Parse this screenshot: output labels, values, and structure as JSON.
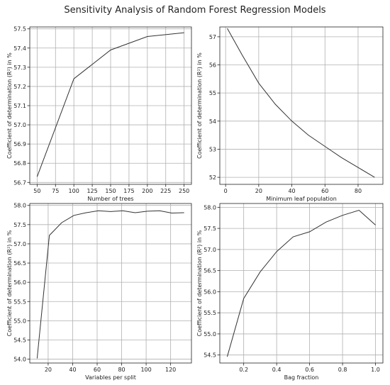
{
  "title": "Sensitivity Analysis of Random Forest Regression Models",
  "chart_data": [
    {
      "type": "line",
      "xlabel": "Number of trees",
      "ylabel": "Coefficient of determination (R²) in %",
      "x": [
        50,
        100,
        150,
        200,
        250
      ],
      "y": [
        56.73,
        57.24,
        57.39,
        57.46,
        57.48
      ],
      "xlim": [
        40,
        260
      ],
      "ylim": [
        56.69,
        57.51
      ],
      "xticks": [
        50,
        75,
        100,
        125,
        150,
        175,
        200,
        225,
        250
      ],
      "xtick_labels": [
        "50",
        "75",
        "100",
        "125",
        "150",
        "175",
        "200",
        "225",
        "250"
      ],
      "yticks": [
        56.7,
        56.8,
        56.9,
        57.0,
        57.1,
        57.2,
        57.3,
        57.4,
        57.5
      ],
      "ytick_labels": [
        "56.7",
        "56.8",
        "56.9",
        "57.0",
        "57.1",
        "57.2",
        "57.3",
        "57.4",
        "57.5"
      ],
      "grid": true,
      "line_color": "#333333"
    },
    {
      "type": "line",
      "xlabel": "Minimum leaf population",
      "ylabel": "Coefficient of determination (R²) in %",
      "x": [
        1,
        10,
        20,
        30,
        40,
        50,
        60,
        70,
        80,
        90
      ],
      "y": [
        57.3,
        56.35,
        55.35,
        54.6,
        54.0,
        53.5,
        53.1,
        52.7,
        52.35,
        52.0
      ],
      "xlim": [
        -3.5,
        95
      ],
      "ylim": [
        51.75,
        57.35
      ],
      "xticks": [
        0,
        20,
        40,
        60,
        80
      ],
      "xtick_labels": [
        "0",
        "20",
        "40",
        "60",
        "80"
      ],
      "yticks": [
        52,
        53,
        54,
        55,
        56,
        57
      ],
      "ytick_labels": [
        "52",
        "53",
        "54",
        "55",
        "56",
        "57"
      ],
      "grid": true,
      "line_color": "#333333"
    },
    {
      "type": "line",
      "xlabel": "Variables per split",
      "ylabel": "Coefficient of determination (R²) in %",
      "x": [
        11,
        21,
        31,
        41,
        51,
        61,
        71,
        81,
        91,
        101,
        111,
        121,
        131
      ],
      "y": [
        54.02,
        57.22,
        57.55,
        57.74,
        57.81,
        57.86,
        57.84,
        57.86,
        57.81,
        57.85,
        57.86,
        57.8,
        57.81
      ],
      "xlim": [
        5,
        137
      ],
      "ylim": [
        53.9,
        58.05
      ],
      "xticks": [
        20,
        40,
        60,
        80,
        100,
        120
      ],
      "xtick_labels": [
        "20",
        "40",
        "60",
        "80",
        "100",
        "120"
      ],
      "yticks": [
        54.0,
        54.5,
        55.0,
        55.5,
        56.0,
        56.5,
        57.0,
        57.5,
        58.0
      ],
      "ytick_labels": [
        "54.0",
        "54.5",
        "55.0",
        "55.5",
        "56.0",
        "56.5",
        "57.0",
        "57.5",
        "58.0"
      ],
      "grid": true,
      "line_color": "#333333"
    },
    {
      "type": "line",
      "xlabel": "Bag fraction",
      "ylabel": "Coefficient of determination (R²) in %",
      "x": [
        0.1,
        0.2,
        0.3,
        0.4,
        0.5,
        0.6,
        0.7,
        0.8,
        0.9,
        1.0
      ],
      "y": [
        54.46,
        55.84,
        56.47,
        56.95,
        57.3,
        57.42,
        57.65,
        57.81,
        57.93,
        57.58
      ],
      "xlim": [
        0.055,
        1.045
      ],
      "ylim": [
        54.31,
        58.09
      ],
      "xticks": [
        0.2,
        0.4,
        0.6,
        0.8,
        1.0
      ],
      "xtick_labels": [
        "0.2",
        "0.4",
        "0.6",
        "0.8",
        "1.0"
      ],
      "yticks": [
        54.5,
        55.0,
        55.5,
        56.0,
        56.5,
        57.0,
        57.5,
        58.0
      ],
      "ytick_labels": [
        "54.5",
        "55.0",
        "55.5",
        "56.0",
        "56.5",
        "57.0",
        "57.5",
        "58.0"
      ],
      "grid": true,
      "line_color": "#333333"
    }
  ]
}
